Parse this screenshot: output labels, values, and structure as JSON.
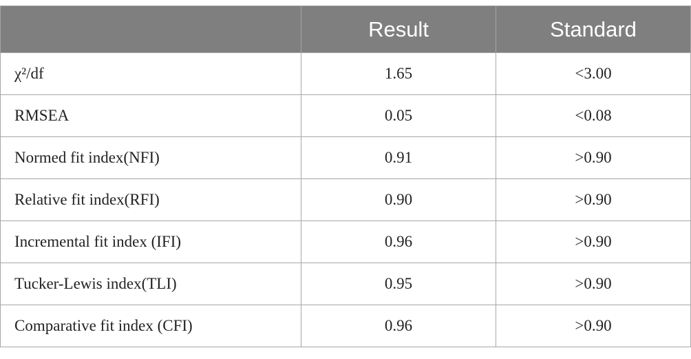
{
  "table": {
    "header": [
      "Result",
      "Standard"
    ],
    "rows": [
      [
        "χ²/df",
        "1.65",
        "<3.00"
      ],
      [
        "RMSEA",
        "0.05",
        "<0.08"
      ],
      [
        "Normed fit index(NFI)",
        "0.91",
        ">0.90"
      ],
      [
        "Relative fit index(RFI)",
        "0.90",
        ">0.90"
      ],
      [
        "Incremental fit index (IFI)",
        "0.96",
        ">0.90"
      ],
      [
        "Tucker-Lewis index(TLI)",
        "0.95",
        ">0.90"
      ],
      [
        "Comparative fit index (CFI)",
        "0.96",
        ">0.90"
      ]
    ]
  }
}
